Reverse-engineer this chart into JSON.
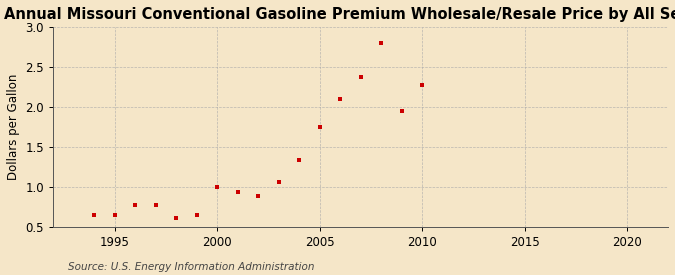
{
  "title": "Annual Missouri Conventional Gasoline Premium Wholesale/Resale Price by All Sellers",
  "ylabel": "Dollars per Gallon",
  "source": "Source: U.S. Energy Information Administration",
  "years": [
    1994,
    1995,
    1996,
    1997,
    1998,
    1999,
    2000,
    2001,
    2002,
    2003,
    2004,
    2005,
    2006,
    2007,
    2008,
    2009,
    2010
  ],
  "values": [
    0.65,
    0.65,
    0.77,
    0.77,
    0.61,
    0.65,
    1.0,
    0.93,
    0.89,
    1.06,
    1.34,
    1.75,
    2.1,
    2.38,
    2.8,
    1.95,
    2.28
  ],
  "marker_color": "#cc0000",
  "background_color": "#f5e6c8",
  "grid_color": "#aaaaaa",
  "xlim": [
    1992,
    2022
  ],
  "ylim": [
    0.5,
    3.0
  ],
  "xticks": [
    1995,
    2000,
    2005,
    2010,
    2015,
    2020
  ],
  "yticks": [
    0.5,
    1.0,
    1.5,
    2.0,
    2.5,
    3.0
  ],
  "title_fontsize": 10.5,
  "label_fontsize": 8.5,
  "tick_fontsize": 8.5,
  "source_fontsize": 7.5
}
